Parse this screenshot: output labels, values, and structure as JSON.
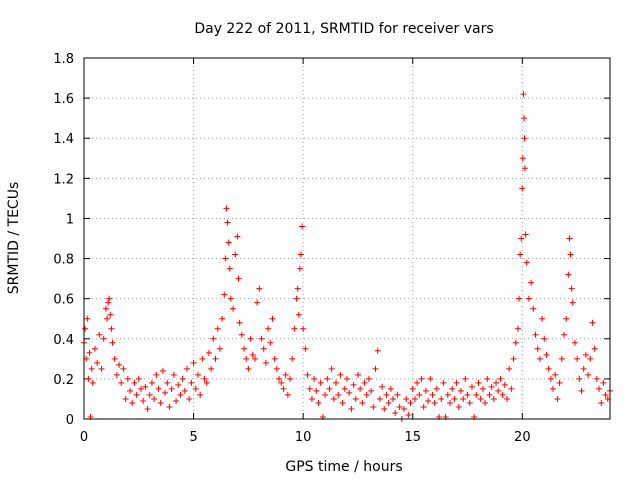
{
  "chart_data": {
    "type": "scatter",
    "title": "Day 222 of 2011, SRMTID for receiver vars",
    "xlabel": "GPS time / hours",
    "ylabel": "SRMTID / TECUs",
    "xlim": [
      0,
      24
    ],
    "ylim": [
      0,
      1.8
    ],
    "grid": true,
    "marker": "+",
    "color": "#ff0000",
    "x_ticks": [
      "0",
      "5",
      "10",
      "15",
      "20"
    ],
    "x_tick_values": [
      0,
      5,
      10,
      15,
      20
    ],
    "y_ticks": [
      "0",
      "0.2",
      "0.4",
      "0.6",
      "0.8",
      "1",
      "1.2",
      "1.4",
      "1.6",
      "1.8"
    ],
    "y_tick_values": [
      0,
      0.2,
      0.4,
      0.6,
      0.8,
      1.0,
      1.2,
      1.4,
      1.6,
      1.8
    ],
    "series": [
      {
        "name": "SRMTID",
        "points": [
          [
            0.0,
            0.38
          ],
          [
            0.05,
            0.45
          ],
          [
            0.1,
            0.3
          ],
          [
            0.15,
            0.5
          ],
          [
            0.2,
            0.2
          ],
          [
            0.25,
            0.33
          ],
          [
            0.3,
            0.01
          ],
          [
            0.35,
            0.25
          ],
          [
            0.4,
            0.18
          ],
          [
            0.5,
            0.35
          ],
          [
            0.6,
            0.28
          ],
          [
            0.7,
            0.42
          ],
          [
            0.8,
            0.25
          ],
          [
            0.9,
            0.4
          ],
          [
            1.0,
            0.55
          ],
          [
            1.05,
            0.5
          ],
          [
            1.1,
            0.58
          ],
          [
            1.15,
            0.6
          ],
          [
            1.2,
            0.52
          ],
          [
            1.25,
            0.45
          ],
          [
            1.3,
            0.38
          ],
          [
            1.4,
            0.3
          ],
          [
            1.5,
            0.22
          ],
          [
            1.6,
            0.27
          ],
          [
            1.7,
            0.18
          ],
          [
            1.8,
            0.25
          ],
          [
            1.9,
            0.1
          ],
          [
            2.0,
            0.2
          ],
          [
            2.1,
            0.14
          ],
          [
            2.2,
            0.08
          ],
          [
            2.3,
            0.18
          ],
          [
            2.4,
            0.12
          ],
          [
            2.5,
            0.2
          ],
          [
            2.6,
            0.15
          ],
          [
            2.7,
            0.09
          ],
          [
            2.8,
            0.16
          ],
          [
            2.9,
            0.05
          ],
          [
            3.0,
            0.12
          ],
          [
            3.1,
            0.18
          ],
          [
            3.2,
            0.1
          ],
          [
            3.3,
            0.22
          ],
          [
            3.4,
            0.15
          ],
          [
            3.5,
            0.08
          ],
          [
            3.6,
            0.24
          ],
          [
            3.7,
            0.13
          ],
          [
            3.8,
            0.18
          ],
          [
            3.9,
            0.06
          ],
          [
            4.0,
            0.15
          ],
          [
            4.1,
            0.22
          ],
          [
            4.2,
            0.09
          ],
          [
            4.3,
            0.17
          ],
          [
            4.4,
            0.12
          ],
          [
            4.5,
            0.2
          ],
          [
            4.6,
            0.14
          ],
          [
            4.7,
            0.25
          ],
          [
            4.8,
            0.1
          ],
          [
            4.9,
            0.18
          ],
          [
            5.0,
            0.28
          ],
          [
            5.1,
            0.15
          ],
          [
            5.2,
            0.22
          ],
          [
            5.3,
            0.12
          ],
          [
            5.4,
            0.3
          ],
          [
            5.5,
            0.2
          ],
          [
            5.6,
            0.18
          ],
          [
            5.7,
            0.33
          ],
          [
            5.8,
            0.25
          ],
          [
            5.9,
            0.4
          ],
          [
            6.0,
            0.3
          ],
          [
            6.1,
            0.45
          ],
          [
            6.2,
            0.35
          ],
          [
            6.3,
            0.5
          ],
          [
            6.4,
            0.62
          ],
          [
            6.45,
            0.8
          ],
          [
            6.5,
            1.05
          ],
          [
            6.55,
            0.98
          ],
          [
            6.6,
            0.88
          ],
          [
            6.65,
            0.75
          ],
          [
            6.7,
            0.6
          ],
          [
            6.8,
            0.55
          ],
          [
            6.9,
            0.82
          ],
          [
            7.0,
            0.91
          ],
          [
            7.05,
            0.7
          ],
          [
            7.1,
            0.48
          ],
          [
            7.2,
            0.42
          ],
          [
            7.3,
            0.35
          ],
          [
            7.4,
            0.3
          ],
          [
            7.5,
            0.25
          ],
          [
            7.6,
            0.4
          ],
          [
            7.7,
            0.32
          ],
          [
            7.8,
            0.3
          ],
          [
            7.9,
            0.58
          ],
          [
            8.0,
            0.65
          ],
          [
            8.1,
            0.4
          ],
          [
            8.2,
            0.35
          ],
          [
            8.3,
            0.28
          ],
          [
            8.4,
            0.45
          ],
          [
            8.5,
            0.38
          ],
          [
            8.6,
            0.5
          ],
          [
            8.7,
            0.3
          ],
          [
            8.8,
            0.25
          ],
          [
            8.9,
            0.2
          ],
          [
            9.0,
            0.18
          ],
          [
            9.1,
            0.15
          ],
          [
            9.2,
            0.22
          ],
          [
            9.3,
            0.12
          ],
          [
            9.4,
            0.2
          ],
          [
            9.5,
            0.3
          ],
          [
            9.6,
            0.45
          ],
          [
            9.7,
            0.6
          ],
          [
            9.75,
            0.65
          ],
          [
            9.8,
            0.52
          ],
          [
            9.85,
            0.75
          ],
          [
            9.9,
            0.82
          ],
          [
            9.95,
            0.96
          ],
          [
            10.0,
            0.45
          ],
          [
            10.1,
            0.35
          ],
          [
            10.2,
            0.22
          ],
          [
            10.3,
            0.15
          ],
          [
            10.4,
            0.1
          ],
          [
            10.5,
            0.2
          ],
          [
            10.6,
            0.14
          ],
          [
            10.7,
            0.08
          ],
          [
            10.8,
            0.18
          ],
          [
            10.9,
            0.01
          ],
          [
            11.0,
            0.12
          ],
          [
            11.1,
            0.2
          ],
          [
            11.2,
            0.15
          ],
          [
            11.3,
            0.25
          ],
          [
            11.4,
            0.1
          ],
          [
            11.5,
            0.18
          ],
          [
            11.6,
            0.12
          ],
          [
            11.7,
            0.22
          ],
          [
            11.8,
            0.08
          ],
          [
            11.9,
            0.15
          ],
          [
            12.0,
            0.2
          ],
          [
            12.1,
            0.13
          ],
          [
            12.2,
            0.05
          ],
          [
            12.3,
            0.17
          ],
          [
            12.4,
            0.1
          ],
          [
            12.5,
            0.22
          ],
          [
            12.6,
            0.15
          ],
          [
            12.7,
            0.08
          ],
          [
            12.8,
            0.18
          ],
          [
            12.9,
            0.12
          ],
          [
            13.0,
            0.2
          ],
          [
            13.1,
            0.14
          ],
          [
            13.2,
            0.06
          ],
          [
            13.3,
            0.25
          ],
          [
            13.4,
            0.34
          ],
          [
            13.5,
            0.1
          ],
          [
            13.6,
            0.16
          ],
          [
            13.7,
            0.05
          ],
          [
            13.8,
            0.12
          ],
          [
            13.9,
            0.08
          ],
          [
            14.0,
            0.15
          ],
          [
            14.1,
            0.1
          ],
          [
            14.2,
            0.03
          ],
          [
            14.3,
            0.12
          ],
          [
            14.4,
            0.06
          ],
          [
            14.5,
            0.0
          ],
          [
            14.6,
            0.05
          ],
          [
            14.7,
            0.1
          ],
          [
            14.8,
            0.02
          ],
          [
            14.9,
            0.08
          ],
          [
            15.0,
            0.15
          ],
          [
            15.1,
            0.1
          ],
          [
            15.2,
            0.18
          ],
          [
            15.3,
            0.12
          ],
          [
            15.4,
            0.2
          ],
          [
            15.5,
            0.06
          ],
          [
            15.6,
            0.14
          ],
          [
            15.7,
            0.09
          ],
          [
            15.8,
            0.2
          ],
          [
            15.9,
            0.12
          ],
          [
            16.0,
            0.08
          ],
          [
            16.1,
            0.15
          ],
          [
            16.2,
            0.01
          ],
          [
            16.3,
            0.1
          ],
          [
            16.4,
            0.18
          ],
          [
            16.5,
            0.01
          ],
          [
            16.6,
            0.12
          ],
          [
            16.7,
            0.08
          ],
          [
            16.8,
            0.15
          ],
          [
            16.9,
            0.1
          ],
          [
            17.0,
            0.18
          ],
          [
            17.1,
            0.06
          ],
          [
            17.2,
            0.14
          ],
          [
            17.3,
            0.1
          ],
          [
            17.4,
            0.2
          ],
          [
            17.5,
            0.12
          ],
          [
            17.6,
            0.08
          ],
          [
            17.7,
            0.16
          ],
          [
            17.8,
            0.01
          ],
          [
            17.9,
            0.12
          ],
          [
            18.0,
            0.18
          ],
          [
            18.1,
            0.1
          ],
          [
            18.2,
            0.15
          ],
          [
            18.3,
            0.08
          ],
          [
            18.4,
            0.2
          ],
          [
            18.5,
            0.12
          ],
          [
            18.6,
            0.16
          ],
          [
            18.7,
            0.1
          ],
          [
            18.8,
            0.18
          ],
          [
            18.9,
            0.14
          ],
          [
            19.0,
            0.2
          ],
          [
            19.1,
            0.12
          ],
          [
            19.2,
            0.17
          ],
          [
            19.3,
            0.1
          ],
          [
            19.4,
            0.25
          ],
          [
            19.5,
            0.15
          ],
          [
            19.6,
            0.3
          ],
          [
            19.7,
            0.38
          ],
          [
            19.8,
            0.45
          ],
          [
            19.85,
            0.6
          ],
          [
            19.9,
            0.82
          ],
          [
            19.95,
            0.9
          ],
          [
            20.0,
            1.15
          ],
          [
            20.02,
            1.3
          ],
          [
            20.05,
            1.62
          ],
          [
            20.08,
            1.5
          ],
          [
            20.1,
            1.4
          ],
          [
            20.12,
            1.25
          ],
          [
            20.15,
            0.92
          ],
          [
            20.2,
            0.78
          ],
          [
            20.3,
            0.6
          ],
          [
            20.4,
            0.68
          ],
          [
            20.5,
            0.55
          ],
          [
            20.6,
            0.42
          ],
          [
            20.7,
            0.35
          ],
          [
            20.8,
            0.3
          ],
          [
            20.9,
            0.5
          ],
          [
            21.0,
            0.4
          ],
          [
            21.1,
            0.32
          ],
          [
            21.2,
            0.25
          ],
          [
            21.3,
            0.2
          ],
          [
            21.4,
            0.15
          ],
          [
            21.5,
            0.22
          ],
          [
            21.6,
            0.1
          ],
          [
            21.7,
            0.18
          ],
          [
            21.8,
            0.3
          ],
          [
            21.9,
            0.42
          ],
          [
            22.0,
            0.5
          ],
          [
            22.1,
            0.72
          ],
          [
            22.15,
            0.9
          ],
          [
            22.2,
            0.82
          ],
          [
            22.25,
            0.65
          ],
          [
            22.3,
            0.58
          ],
          [
            22.4,
            0.38
          ],
          [
            22.5,
            0.3
          ],
          [
            22.6,
            0.2
          ],
          [
            22.7,
            0.14
          ],
          [
            22.8,
            0.25
          ],
          [
            22.9,
            0.32
          ],
          [
            23.0,
            0.22
          ],
          [
            23.1,
            0.3
          ],
          [
            23.2,
            0.48
          ],
          [
            23.3,
            0.35
          ],
          [
            23.4,
            0.2
          ],
          [
            23.5,
            0.15
          ],
          [
            23.6,
            0.08
          ],
          [
            23.7,
            0.18
          ],
          [
            23.8,
            0.12
          ],
          [
            23.9,
            0.1
          ],
          [
            24.0,
            0.14
          ]
        ]
      }
    ]
  }
}
